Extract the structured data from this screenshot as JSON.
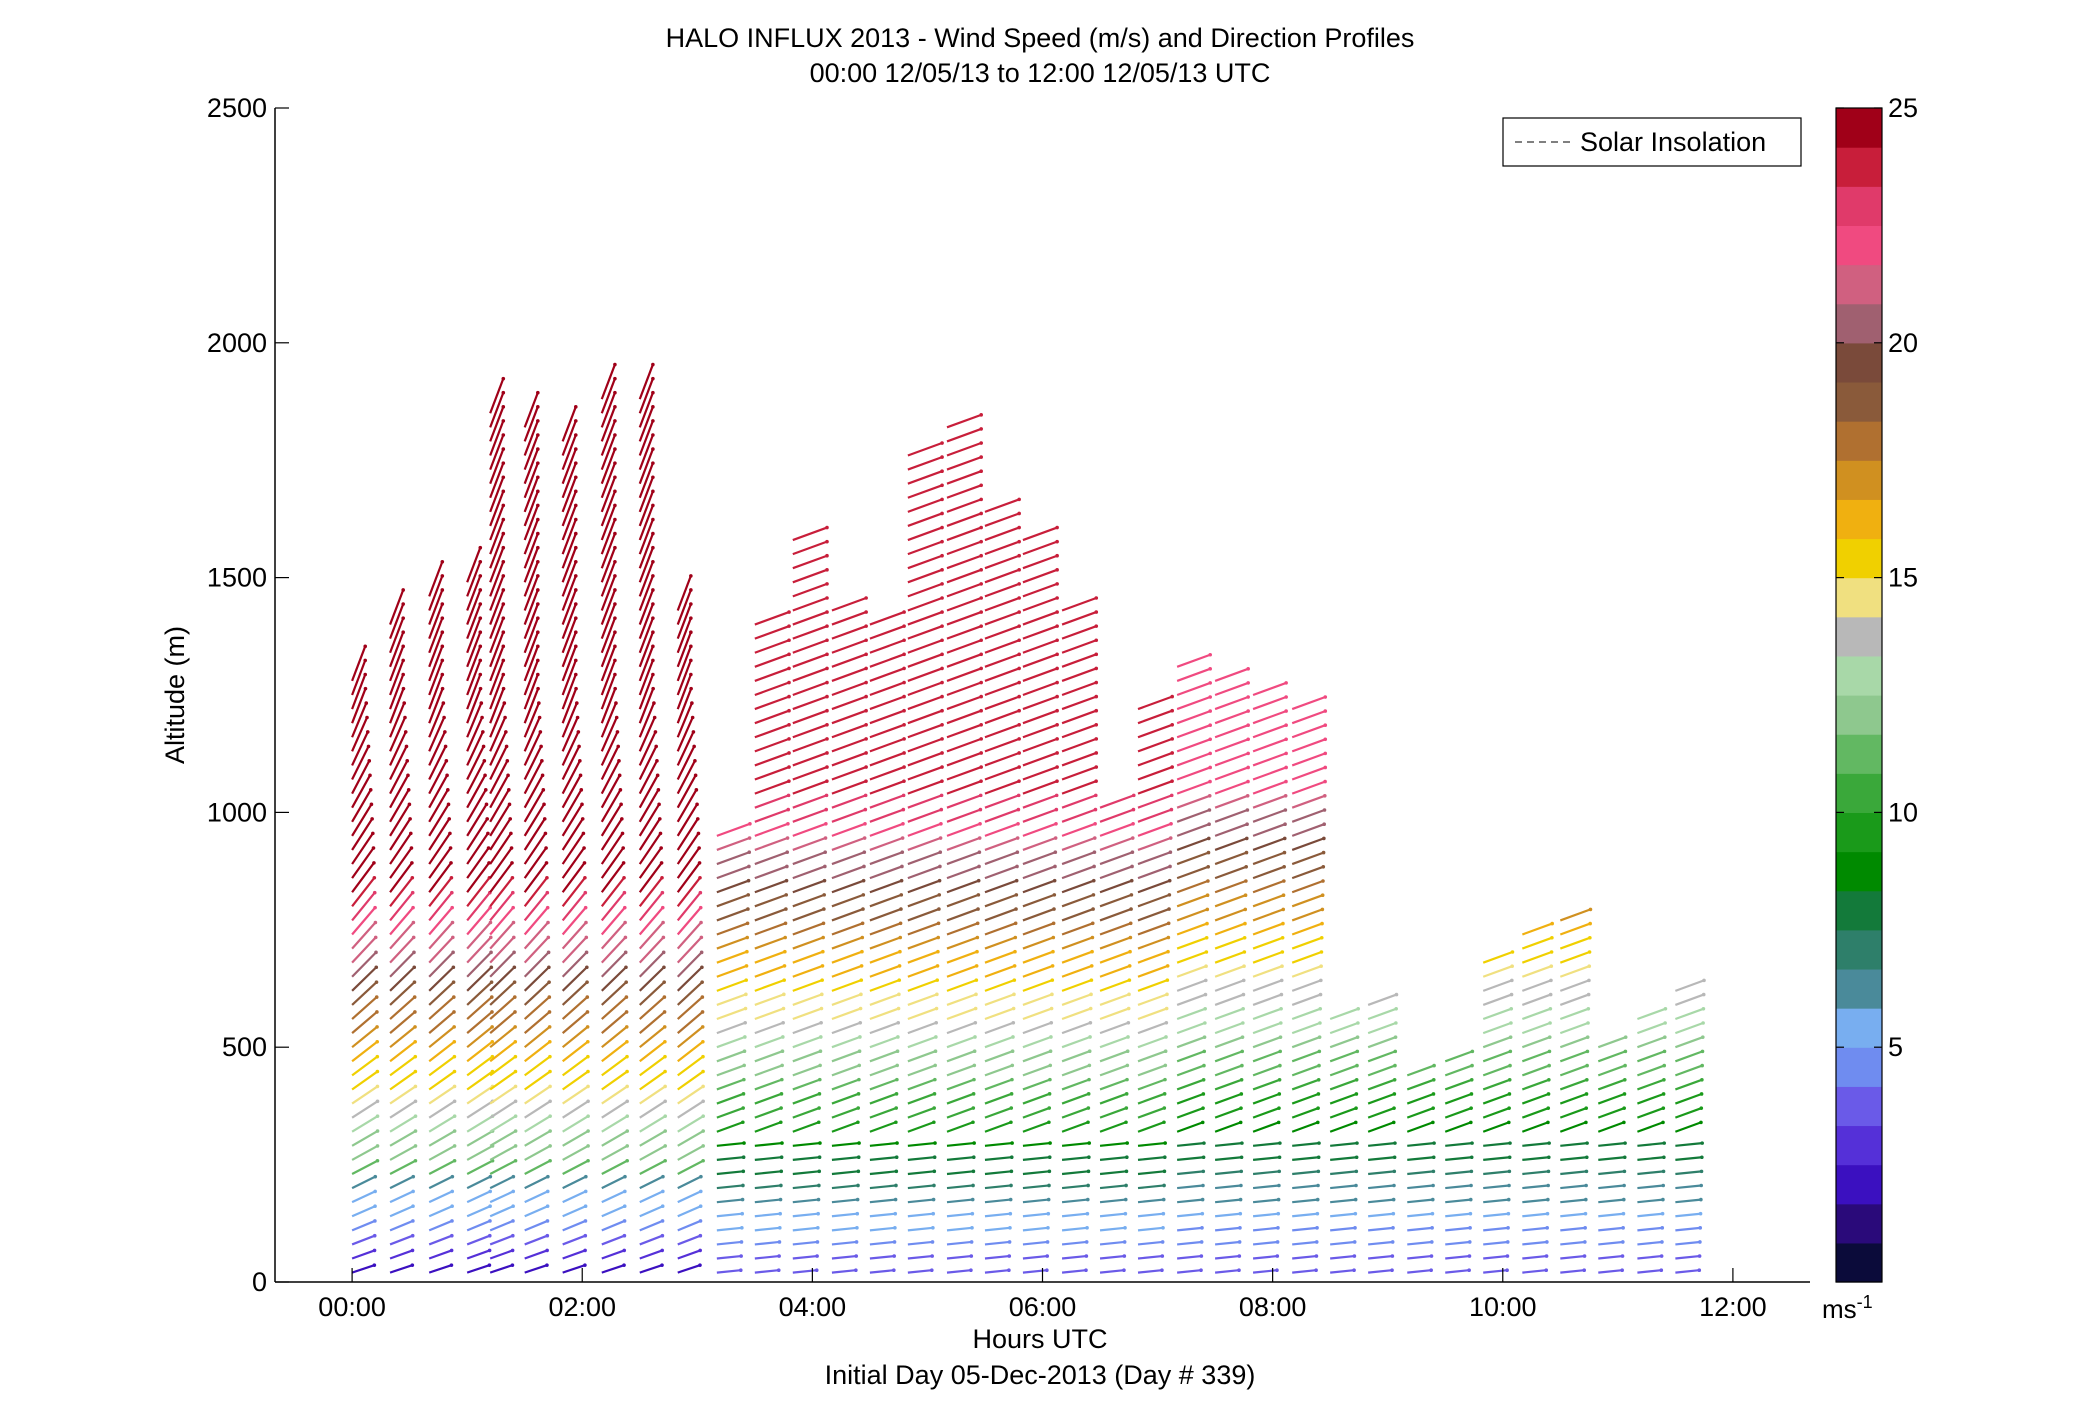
{
  "chart_data": {
    "type": "scatter",
    "title": "HALO INFLUX 2013 - Wind Speed (m/s) and Direction Profiles",
    "subtitle": "00:00 12/05/13 to 12:00 12/05/13  UTC",
    "xlabel": "Hours UTC",
    "xlabel2": "Initial Day 05-Dec-2013 (Day # 339)",
    "ylabel": "Altitude (m)",
    "xlim": [
      -0.67,
      12.67
    ],
    "ylim": [
      0,
      2500
    ],
    "x_ticks": [
      {
        "value": 0,
        "label": "00:00"
      },
      {
        "value": 2,
        "label": "02:00"
      },
      {
        "value": 4,
        "label": "04:00"
      },
      {
        "value": 6,
        "label": "06:00"
      },
      {
        "value": 8,
        "label": "08:00"
      },
      {
        "value": 10,
        "label": "10:00"
      },
      {
        "value": 12,
        "label": "12:00"
      }
    ],
    "y_ticks": [
      {
        "value": 0,
        "label": "0"
      },
      {
        "value": 500,
        "label": "500"
      },
      {
        "value": 1000,
        "label": "1000"
      },
      {
        "value": 1500,
        "label": "1500"
      },
      {
        "value": 2000,
        "label": "2000"
      },
      {
        "value": 2500,
        "label": "2500"
      }
    ],
    "legend": {
      "position": "top-right",
      "entries": [
        {
          "label": "Solar Insolation",
          "style": "dashed",
          "color": "#808080"
        }
      ]
    },
    "colorbar": {
      "min": 0,
      "max": 25,
      "ticks": [
        {
          "value": 5,
          "label": "5"
        },
        {
          "value": 10,
          "label": "10"
        },
        {
          "value": 15,
          "label": "15"
        },
        {
          "value": 20,
          "label": "20"
        },
        {
          "value": 25,
          "label": "25"
        }
      ],
      "unit": "ms",
      "unit_exponent": "-1",
      "colors": [
        "#0b0b3a",
        "#2a0a7a",
        "#3b10c0",
        "#5530d8",
        "#6a5ae8",
        "#6f8cf0",
        "#78aef0",
        "#4a8a9a",
        "#2e7f6a",
        "#137a3a",
        "#008a00",
        "#1a9a1a",
        "#3aa83a",
        "#62b862",
        "#8ec88e",
        "#a8d8a8",
        "#b8b8b8",
        "#f0e080",
        "#f0d000",
        "#f0b010",
        "#d09020",
        "#b07030",
        "#8a5a3a",
        "#7a4a3a",
        "#a06070",
        "#d06080",
        "#f04a80",
        "#e03a6a",
        "#c81e3a",
        "#a00018"
      ]
    },
    "profiles": [
      {
        "time": 0.0,
        "top": 1290
      },
      {
        "time": 0.33,
        "top": 1400
      },
      {
        "time": 0.67,
        "top": 1480
      },
      {
        "time": 1.0,
        "top": 1500
      },
      {
        "time": 1.2,
        "top": 1860
      },
      {
        "time": 1.5,
        "top": 1830
      },
      {
        "time": 1.83,
        "top": 1790
      },
      {
        "time": 2.17,
        "top": 1900
      },
      {
        "time": 2.5,
        "top": 1880
      },
      {
        "time": 2.83,
        "top": 1440
      },
      {
        "time": 3.17,
        "top": 970
      },
      {
        "time": 3.5,
        "top": 1400
      },
      {
        "time": 3.83,
        "top": 1600
      },
      {
        "time": 4.17,
        "top": 1440
      },
      {
        "time": 4.5,
        "top": 1400
      },
      {
        "time": 4.83,
        "top": 1780
      },
      {
        "time": 5.17,
        "top": 1820
      },
      {
        "time": 5.5,
        "top": 1660
      },
      {
        "time": 5.83,
        "top": 1600
      },
      {
        "time": 6.17,
        "top": 1440
      },
      {
        "time": 6.5,
        "top": 1020
      },
      {
        "time": 6.83,
        "top": 1240
      },
      {
        "time": 7.17,
        "top": 1320
      },
      {
        "time": 7.5,
        "top": 1290
      },
      {
        "time": 7.83,
        "top": 1250
      },
      {
        "time": 8.17,
        "top": 1240
      },
      {
        "time": 8.5,
        "top": 580
      },
      {
        "time": 8.83,
        "top": 590
      },
      {
        "time": 9.17,
        "top": 460
      },
      {
        "time": 9.5,
        "top": 480
      },
      {
        "time": 9.83,
        "top": 700
      },
      {
        "time": 10.17,
        "top": 760
      },
      {
        "time": 10.5,
        "top": 790
      },
      {
        "time": 10.83,
        "top": 520
      },
      {
        "time": 11.17,
        "top": 560
      },
      {
        "time": 11.5,
        "top": 620
      }
    ]
  },
  "colors": {
    "axis": "#000000",
    "legend_line": "#808080"
  }
}
